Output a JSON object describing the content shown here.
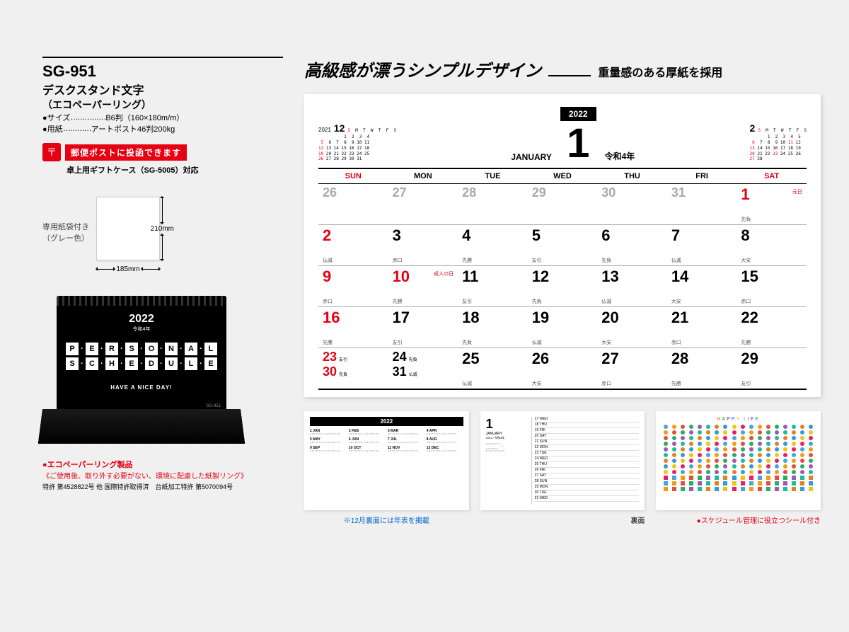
{
  "product": {
    "code": "SG-951",
    "name": "デスクスタンド文字",
    "sub": "（エコペーパーリング）",
    "size_label": "●サイズ",
    "size_value": "B6判（160×180m/m）",
    "paper_label": "●用紙",
    "paper_value": "アートポスト46判200kg"
  },
  "post": {
    "label": "郵便ポストに投函できます",
    "gift_case": "卓上用ギフトケース（SG-5005）対応"
  },
  "bag": {
    "label1": "専用紙袋付き",
    "label2": "（グレー色）",
    "height": "210mm",
    "width": "185mm"
  },
  "photo": {
    "year": "2022",
    "year_sub": "令和4年",
    "title1": "PERSONAL",
    "title2": "SCHEDULE",
    "tagline": "HAVE A NICE DAY!",
    "code": "SG-951"
  },
  "eco": {
    "title": "●エコペーパーリング製品",
    "desc": "《ご使用後、取り外す必要がない、環境に配慮した紙製リング》",
    "patent": "特許 第4528822号 他 国際特許取得済　台紙加工特許 第5070094号"
  },
  "headline": {
    "main": "高級感が漂うシンプルデザイン",
    "sub": "重量感のある厚紙を採用"
  },
  "calendar": {
    "prev": {
      "year": "2021",
      "month": "12"
    },
    "next": {
      "month": "2"
    },
    "month_name": "JANUARY",
    "month_num": "1",
    "year_box": "2022",
    "era": "令和4年",
    "days": [
      "SUN",
      "MON",
      "TUE",
      "WED",
      "THU",
      "FRI",
      "SAT"
    ],
    "weeks": [
      [
        {
          "n": "26",
          "gray": true
        },
        {
          "n": "27",
          "gray": true
        },
        {
          "n": "28",
          "gray": true
        },
        {
          "n": "29",
          "gray": true
        },
        {
          "n": "30",
          "gray": true
        },
        {
          "n": "31",
          "gray": true
        },
        {
          "n": "1",
          "red": true,
          "r": "先負",
          "h": "元日"
        }
      ],
      [
        {
          "n": "2",
          "red": true,
          "r": "仏滅"
        },
        {
          "n": "3",
          "r": "赤口"
        },
        {
          "n": "4",
          "r": "先勝"
        },
        {
          "n": "5",
          "r": "友引"
        },
        {
          "n": "6",
          "r": "先負"
        },
        {
          "n": "7",
          "r": "仏滅"
        },
        {
          "n": "8",
          "r": "大安"
        }
      ],
      [
        {
          "n": "9",
          "red": true,
          "r": "赤口"
        },
        {
          "n": "10",
          "red": true,
          "r": "先勝",
          "h": "成人の日"
        },
        {
          "n": "11",
          "r": "友引"
        },
        {
          "n": "12",
          "r": "先負"
        },
        {
          "n": "13",
          "r": "仏滅"
        },
        {
          "n": "14",
          "r": "大安"
        },
        {
          "n": "15",
          "r": "赤口"
        }
      ],
      [
        {
          "n": "16",
          "red": true,
          "r": "先勝"
        },
        {
          "n": "17",
          "r": "友引"
        },
        {
          "n": "18",
          "r": "先負"
        },
        {
          "n": "19",
          "r": "仏滅"
        },
        {
          "n": "20",
          "r": "大安"
        },
        {
          "n": "21",
          "r": "赤口"
        },
        {
          "n": "22",
          "r": "先勝"
        }
      ],
      [
        {
          "dual": true,
          "a": "23",
          "ar": "友引",
          "b": "30",
          "br": "先負",
          "red": true
        },
        {
          "dual": true,
          "a": "24",
          "ar": "先負",
          "b": "31",
          "br": "仏滅"
        },
        {
          "n": "25",
          "r": "仏滅"
        },
        {
          "n": "26",
          "r": "大安"
        },
        {
          "n": "27",
          "r": "赤口"
        },
        {
          "n": "28",
          "r": "先勝"
        },
        {
          "n": "29",
          "r": "友引"
        }
      ]
    ]
  },
  "thumbs": {
    "year_caption": "※12月裏面には年表を掲載",
    "back_caption": "裏面",
    "sticker_caption": "●スケジュール管理に役立つシール付き",
    "year_box": "2022",
    "months": [
      "JANUARY",
      "FEBRUARY",
      "MARCH",
      "APRIL",
      "MAY",
      "JUNE",
      "JULY",
      "AUGUST",
      "SEPTEMBER",
      "OCTOBER",
      "NOVEMBER",
      "DECEMBER"
    ],
    "sched_month": "1",
    "sched_name": "JANUARY",
    "sched_year": "2022 / 令和4年",
    "happy_life": "HAPPY LIFE"
  },
  "sticker_colors": [
    "#4aa3df",
    "#f39c12",
    "#e74c3c",
    "#27ae60",
    "#9b59b6",
    "#1abc9c",
    "#e67e22",
    "#3498db",
    "#f1c40f",
    "#e91e63"
  ]
}
